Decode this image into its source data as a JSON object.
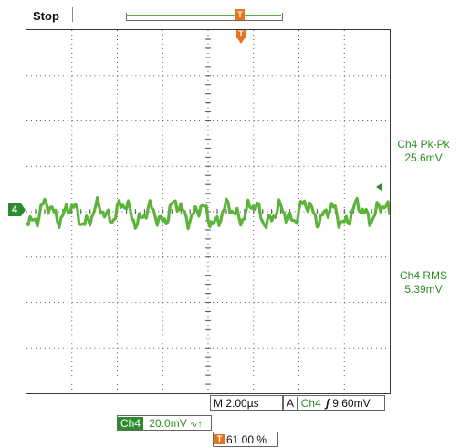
{
  "status": {
    "run_state": "Stop"
  },
  "trigger": {
    "position_marker": "T"
  },
  "channel": {
    "marker_label": "4",
    "color": "#5cb33a"
  },
  "measurements": [
    {
      "name": "Ch4 Pk-Pk",
      "value": "25.6mV"
    },
    {
      "name": "Ch4 RMS",
      "value": "5.39mV"
    }
  ],
  "timebase": {
    "label": "M",
    "value": "2.00µs"
  },
  "acquisition_trigger": {
    "mode": "A",
    "source": "Ch4",
    "slope_symbol": "ʃ",
    "level": "9.60mV"
  },
  "vertical": {
    "channel": "Ch4",
    "scale": "20.0mV",
    "coupling_symbol": "∿↑"
  },
  "trigger_position": {
    "marker": "T",
    "value": "61.00 %"
  }
}
